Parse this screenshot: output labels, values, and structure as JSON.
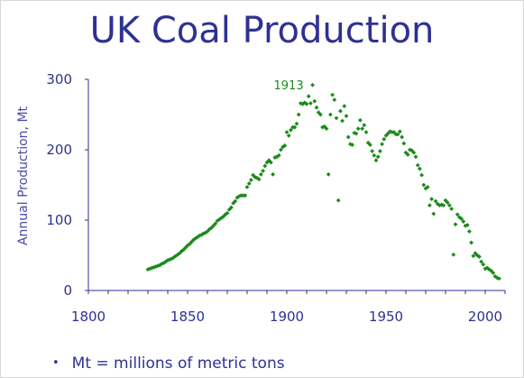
{
  "note": {
    "bullet": "•",
    "text": "Mt = millions of metric tons"
  },
  "chart_data": {
    "type": "scatter",
    "title": "UK Coal Production",
    "xlabel": "",
    "ylabel": "Annual Production, Mt",
    "xlim": [
      1800,
      2010
    ],
    "ylim": [
      0,
      300
    ],
    "x_ticks": [
      1800,
      1850,
      1900,
      1950,
      2000
    ],
    "y_ticks": [
      0,
      100,
      200,
      300
    ],
    "grid": false,
    "marker_color": "#1a8a1a",
    "axis_color": "#2e3192",
    "annotations": [
      {
        "text": "1913",
        "x": 1913,
        "y": 292
      }
    ],
    "series": [
      {
        "x": [
          1830,
          1831,
          1832,
          1833,
          1834,
          1835,
          1836,
          1837,
          1838,
          1839,
          1840,
          1841,
          1842,
          1843,
          1844,
          1845,
          1846,
          1847,
          1848,
          1849,
          1850,
          1851,
          1852,
          1853,
          1854,
          1855,
          1856,
          1857,
          1858,
          1859,
          1860,
          1861,
          1862,
          1863,
          1864,
          1865,
          1866,
          1867,
          1868,
          1869,
          1870,
          1871,
          1872,
          1873,
          1874,
          1875,
          1876,
          1877,
          1878,
          1879,
          1880,
          1881,
          1882,
          1883,
          1884,
          1885,
          1886,
          1887,
          1888,
          1889,
          1890,
          1891,
          1892,
          1893,
          1894,
          1895,
          1896,
          1897,
          1898,
          1899,
          1900,
          1901,
          1902,
          1903,
          1904,
          1905,
          1906,
          1907,
          1908,
          1909,
          1910,
          1911,
          1912,
          1913,
          1914,
          1915,
          1916,
          1917,
          1918,
          1919,
          1920,
          1921,
          1922,
          1923,
          1924,
          1925,
          1926,
          1927,
          1928,
          1929,
          1930,
          1931,
          1932,
          1933,
          1934,
          1935,
          1936,
          1937,
          1938,
          1939,
          1940,
          1941,
          1942,
          1943,
          1944,
          1945,
          1946,
          1947,
          1948,
          1949,
          1950,
          1951,
          1952,
          1953,
          1954,
          1955,
          1956,
          1957,
          1958,
          1959,
          1960,
          1961,
          1962,
          1963,
          1964,
          1965,
          1966,
          1967,
          1968,
          1969,
          1970,
          1971,
          1972,
          1973,
          1974,
          1975,
          1976,
          1977,
          1978,
          1979,
          1980,
          1981,
          1982,
          1983,
          1984,
          1985,
          1986,
          1987,
          1988,
          1989,
          1990,
          1991,
          1992,
          1993,
          1994,
          1995,
          1996,
          1997,
          1998,
          1999,
          2000,
          2001,
          2002,
          2003,
          2004,
          2005,
          2006,
          2007
        ],
        "y": [
          30,
          31,
          32,
          33,
          34,
          35,
          36,
          38,
          39,
          41,
          43,
          44,
          45,
          47,
          49,
          51,
          53,
          56,
          58,
          61,
          64,
          66,
          69,
          72,
          74,
          76,
          78,
          79,
          81,
          82,
          84,
          87,
          89,
          92,
          95,
          99,
          101,
          103,
          105,
          108,
          110,
          115,
          118,
          124,
          127,
          132,
          134,
          135,
          135,
          135,
          147,
          152,
          157,
          164,
          161,
          160,
          158,
          165,
          170,
          177,
          182,
          185,
          182,
          165,
          189,
          190,
          192,
          200,
          204,
          206,
          225,
          220,
          228,
          232,
          232,
          237,
          250,
          266,
          265,
          267,
          265,
          276,
          266,
          292,
          269,
          260,
          253,
          250,
          232,
          233,
          230,
          165,
          250,
          278,
          271,
          245,
          128,
          255,
          241,
          262,
          248,
          218,
          208,
          207,
          224,
          223,
          230,
          242,
          230,
          235,
          225,
          210,
          207,
          198,
          192,
          185,
          190,
          198,
          208,
          215,
          220,
          223,
          226,
          225,
          225,
          222,
          222,
          226,
          218,
          209,
          196,
          193,
          200,
          199,
          196,
          190,
          178,
          173,
          164,
          150,
          145,
          147,
          121,
          130,
          109,
          127,
          123,
          121,
          122,
          121,
          128,
          125,
          121,
          116,
          51,
          94,
          108,
          104,
          102,
          98,
          92,
          93,
          84,
          68,
          49,
          53,
          50,
          48,
          41,
          37,
          31,
          32,
          30,
          28,
          25,
          20,
          18,
          17
        ]
      }
    ]
  }
}
